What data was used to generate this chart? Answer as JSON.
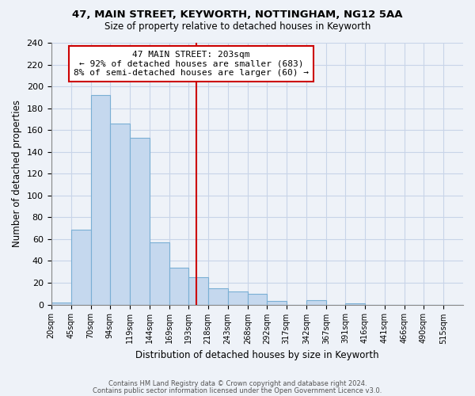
{
  "title1": "47, MAIN STREET, KEYWORTH, NOTTINGHAM, NG12 5AA",
  "title2": "Size of property relative to detached houses in Keyworth",
  "xlabel": "Distribution of detached houses by size in Keyworth",
  "ylabel": "Number of detached properties",
  "bin_labels": [
    "20sqm",
    "45sqm",
    "70sqm",
    "94sqm",
    "119sqm",
    "144sqm",
    "169sqm",
    "193sqm",
    "218sqm",
    "243sqm",
    "268sqm",
    "292sqm",
    "317sqm",
    "342sqm",
    "367sqm",
    "391sqm",
    "416sqm",
    "441sqm",
    "466sqm",
    "490sqm",
    "515sqm"
  ],
  "bar_heights": [
    2,
    69,
    192,
    166,
    153,
    57,
    34,
    25,
    15,
    12,
    10,
    3,
    0,
    4,
    0,
    1,
    0,
    0,
    0,
    0,
    0
  ],
  "bar_color": "#c5d8ee",
  "bar_edge_color": "#7aafd4",
  "vline_x_index": 7,
  "vline_color": "#cc0000",
  "annotation_line1": "47 MAIN STREET: 203sqm",
  "annotation_line2": "← 92% of detached houses are smaller (683)",
  "annotation_line3": "8% of semi-detached houses are larger (60) →",
  "annotation_box_color": "#ffffff",
  "annotation_box_edge": "#cc0000",
  "ylim": [
    0,
    240
  ],
  "yticks": [
    0,
    20,
    40,
    60,
    80,
    100,
    120,
    140,
    160,
    180,
    200,
    220,
    240
  ],
  "grid_color": "#c8d4e8",
  "bg_color": "#eef2f8",
  "footer1": "Contains HM Land Registry data © Crown copyright and database right 2024.",
  "footer2": "Contains public sector information licensed under the Open Government Licence v3.0.",
  "bin_edges": [
    20,
    45,
    70,
    94,
    119,
    144,
    169,
    193,
    218,
    243,
    268,
    292,
    317,
    342,
    367,
    391,
    416,
    441,
    466,
    490,
    515,
    540
  ]
}
